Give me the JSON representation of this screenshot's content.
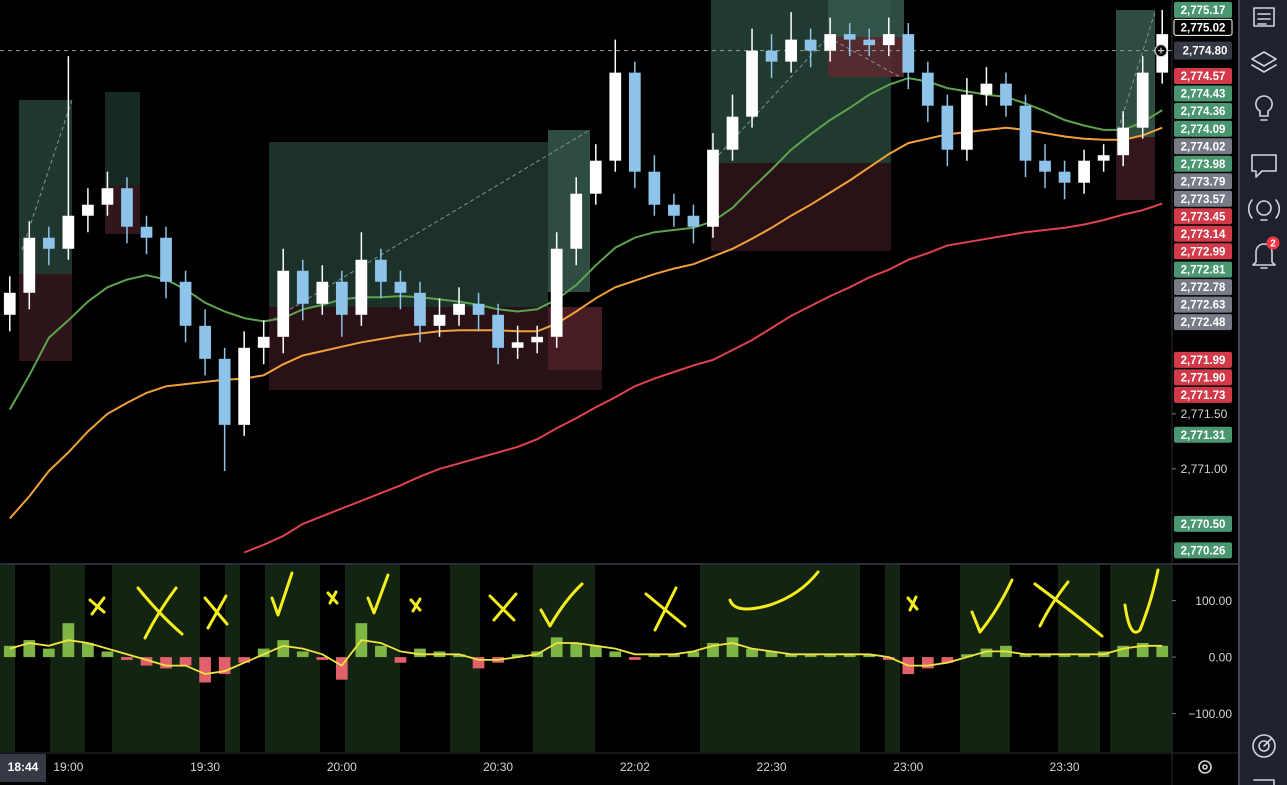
{
  "chart_data": [
    {
      "type": "candlestick",
      "categories": [
        null,
        null,
        null,
        "19:00",
        null,
        null,
        null,
        null,
        null,
        null,
        "19:30",
        null,
        null,
        null,
        null,
        null,
        null,
        "20:00",
        null,
        null,
        null,
        null,
        null,
        null,
        null,
        "20:30",
        null,
        null,
        null,
        null,
        null,
        null,
        "22:02",
        null,
        null,
        null,
        null,
        null,
        null,
        "22:30",
        null,
        null,
        null,
        null,
        null,
        null,
        "23:00",
        null,
        null,
        null,
        null,
        null,
        null,
        null,
        "23:30",
        null,
        null,
        null,
        null,
        null
      ],
      "open": [
        2772.4,
        2772.6,
        2773.1,
        2773.0,
        2773.3,
        2773.4,
        2773.55,
        2773.2,
        2773.1,
        2772.7,
        2772.3,
        2772.0,
        2771.4,
        2772.1,
        2772.2,
        2772.8,
        2772.5,
        2772.7,
        2772.4,
        2772.9,
        2772.7,
        2772.6,
        2772.3,
        2772.4,
        2772.5,
        2772.4,
        2772.1,
        2772.15,
        2772.2,
        2773.0,
        2773.5,
        2773.8,
        2774.6,
        2773.7,
        2773.4,
        2773.3,
        2773.2,
        2773.9,
        2774.2,
        2774.8,
        2774.7,
        2774.9,
        2774.8,
        2774.95,
        2774.9,
        2774.85,
        2774.95,
        2774.6,
        2774.3,
        2773.9,
        2774.4,
        2774.5,
        2774.3,
        2773.8,
        2773.7,
        2773.6,
        2773.8,
        2773.85,
        2774.1,
        2774.6
      ],
      "high": [
        2772.75,
        2773.25,
        2773.2,
        2774.75,
        2773.55,
        2773.7,
        2773.65,
        2773.3,
        2773.2,
        2772.8,
        2772.45,
        2772.1,
        2772.25,
        2772.35,
        2773.0,
        2772.9,
        2772.85,
        2772.8,
        2773.15,
        2773.0,
        2772.8,
        2772.7,
        2772.55,
        2772.65,
        2772.6,
        2772.5,
        2772.3,
        2772.3,
        2773.15,
        2773.65,
        2773.95,
        2774.9,
        2774.7,
        2773.85,
        2773.5,
        2773.4,
        2774.05,
        2774.4,
        2775.0,
        2774.95,
        2775.15,
        2775.0,
        2775.1,
        2775.05,
        2775.0,
        2775.1,
        2775.05,
        2774.7,
        2774.4,
        2774.55,
        2774.65,
        2774.6,
        2774.4,
        2773.95,
        2773.8,
        2773.9,
        2773.95,
        2774.25,
        2774.75,
        2775.17
      ],
      "low": [
        2772.25,
        2772.45,
        2772.85,
        2772.9,
        2773.15,
        2773.3,
        2773.05,
        2772.95,
        2772.55,
        2772.15,
        2771.85,
        2770.98,
        2771.3,
        2771.95,
        2772.05,
        2772.35,
        2772.4,
        2772.2,
        2772.3,
        2772.55,
        2772.45,
        2772.15,
        2772.2,
        2772.3,
        2772.25,
        2771.95,
        2772.0,
        2772.05,
        2772.1,
        2772.85,
        2773.4,
        2773.7,
        2773.55,
        2773.3,
        2773.2,
        2773.05,
        2773.1,
        2773.8,
        2774.1,
        2774.55,
        2774.6,
        2774.65,
        2774.7,
        2774.75,
        2774.75,
        2774.75,
        2774.45,
        2774.15,
        2773.75,
        2773.8,
        2774.3,
        2774.2,
        2773.65,
        2773.55,
        2773.45,
        2773.5,
        2773.7,
        2773.75,
        2774.0,
        2774.5
      ],
      "close": [
        2772.6,
        2773.1,
        2773.0,
        2773.3,
        2773.4,
        2773.55,
        2773.2,
        2773.1,
        2772.7,
        2772.3,
        2772.0,
        2771.4,
        2772.1,
        2772.2,
        2772.8,
        2772.5,
        2772.7,
        2772.4,
        2772.9,
        2772.7,
        2772.6,
        2772.3,
        2772.4,
        2772.5,
        2772.4,
        2772.1,
        2772.15,
        2772.2,
        2773.0,
        2773.5,
        2773.8,
        2774.6,
        2773.7,
        2773.4,
        2773.3,
        2773.2,
        2773.9,
        2774.2,
        2774.8,
        2774.7,
        2774.9,
        2774.8,
        2774.95,
        2774.9,
        2774.85,
        2774.95,
        2774.6,
        2774.3,
        2773.9,
        2774.4,
        2774.5,
        2774.3,
        2773.8,
        2773.7,
        2773.6,
        2773.8,
        2773.85,
        2774.1,
        2774.6,
        2774.95
      ],
      "up_color": "#ffffff",
      "down_color": "#8ec3ea",
      "lines": [
        {
          "color": "#5da34f",
          "values": [
            2771.54,
            2771.85,
            2772.19,
            2772.35,
            2772.52,
            2772.65,
            2772.72,
            2772.76,
            2772.72,
            2772.63,
            2772.51,
            2772.43,
            2772.37,
            2772.34,
            2772.37,
            2772.45,
            2772.49,
            2772.54,
            2772.56,
            2772.56,
            2772.57,
            2772.56,
            2772.54,
            2772.52,
            2772.49,
            2772.45,
            2772.43,
            2772.45,
            2772.54,
            2772.67,
            2772.85,
            2773.01,
            2773.1,
            2773.15,
            2773.17,
            2773.19,
            2773.25,
            2773.37,
            2773.55,
            2773.72,
            2773.9,
            2774.04,
            2774.17,
            2774.28,
            2774.4,
            2774.49,
            2774.55,
            2774.52,
            2774.46,
            2774.43,
            2774.4,
            2774.38,
            2774.32,
            2774.25,
            2774.17,
            2774.12,
            2774.08,
            2774.08,
            2774.15,
            2774.26
          ]
        },
        {
          "color": "#f2a03a",
          "values": [
            2770.55,
            2770.75,
            2770.98,
            2771.15,
            2771.34,
            2771.5,
            2771.6,
            2771.69,
            2771.75,
            2771.77,
            2771.79,
            2771.81,
            2771.82,
            2771.85,
            2771.95,
            2772.03,
            2772.07,
            2772.11,
            2772.15,
            2772.18,
            2772.21,
            2772.23,
            2772.25,
            2772.26,
            2772.26,
            2772.26,
            2772.25,
            2772.25,
            2772.32,
            2772.43,
            2772.55,
            2772.65,
            2772.71,
            2772.77,
            2772.82,
            2772.86,
            2772.93,
            2773.0,
            2773.09,
            2773.19,
            2773.3,
            2773.4,
            2773.51,
            2773.62,
            2773.74,
            2773.86,
            2773.96,
            2774.0,
            2774.04,
            2774.06,
            2774.08,
            2774.1,
            2774.08,
            2774.05,
            2774.02,
            2774.0,
            2773.99,
            2773.99,
            2774.03,
            2774.1
          ]
        },
        {
          "color": "#e0424e",
          "values": [
            null,
            null,
            null,
            null,
            null,
            null,
            null,
            null,
            null,
            null,
            null,
            null,
            2770.24,
            2770.31,
            2770.39,
            2770.5,
            2770.57,
            2770.64,
            2770.71,
            2770.78,
            2770.85,
            2770.93,
            2771.0,
            2771.05,
            2771.1,
            2771.15,
            2771.2,
            2771.27,
            2771.37,
            2771.46,
            2771.56,
            2771.65,
            2771.75,
            2771.82,
            2771.88,
            2771.94,
            2771.99,
            2772.08,
            2772.17,
            2772.28,
            2772.39,
            2772.48,
            2772.57,
            2772.65,
            2772.74,
            2772.81,
            2772.9,
            2772.96,
            2773.03,
            2773.06,
            2773.09,
            2773.12,
            2773.15,
            2773.17,
            2773.19,
            2773.22,
            2773.26,
            2773.31,
            2773.35,
            2773.41
          ]
        }
      ],
      "ylim": [
        2770.145,
        2775.26
      ],
      "yticks": [
        {
          "value": 2771.5,
          "label": "2,771.50"
        },
        {
          "value": 2771,
          "label": "2,771.00"
        }
      ],
      "price_tags": [
        {
          "value": 2775.17,
          "label": "2,775.17",
          "color": "#4a9670"
        },
        {
          "value": 2775.02,
          "label": "2,775.02",
          "color": "#000000"
        },
        {
          "value": 2774.57,
          "label": "2,774.57",
          "color": "#d23a4a"
        },
        {
          "value": 2774.43,
          "label": "2,774.43",
          "color": "#4a9670"
        },
        {
          "value": 2774.36,
          "label": "2,774.36",
          "color": "#4a9670"
        },
        {
          "value": 2774.09,
          "label": "2,774.09",
          "color": "#4a9670"
        },
        {
          "value": 2774.02,
          "label": "2,774.02",
          "color": "#787b86"
        },
        {
          "value": 2773.98,
          "label": "2,773.98",
          "color": "#4a9670"
        },
        {
          "value": 2773.79,
          "label": "2,773.79",
          "color": "#787b86"
        },
        {
          "value": 2773.57,
          "label": "2,773.57",
          "color": "#787b86"
        },
        {
          "value": 2773.45,
          "label": "2,773.45",
          "color": "#d23a4a"
        },
        {
          "value": 2773.14,
          "label": "2,773.14",
          "color": "#d23a4a"
        },
        {
          "value": 2772.99,
          "label": "2,772.99",
          "color": "#d23a4a"
        },
        {
          "value": 2772.81,
          "label": "2,772.81",
          "color": "#4a9670"
        },
        {
          "value": 2772.78,
          "label": "2,772.78",
          "color": "#787b86"
        },
        {
          "value": 2772.63,
          "label": "2,772.63",
          "color": "#787b86"
        },
        {
          "value": 2772.48,
          "label": "2,772.48",
          "color": "#787b86"
        },
        {
          "value": 2771.99,
          "label": "2,771.99",
          "color": "#d23a4a"
        },
        {
          "value": 2771.9,
          "label": "2,771.90",
          "color": "#d23a4a"
        },
        {
          "value": 2771.73,
          "label": "2,771.73",
          "color": "#d23a4a"
        },
        {
          "value": 2771.31,
          "label": "2,771.31",
          "color": "#4a9670"
        },
        {
          "value": 2770.5,
          "label": "2,770.50",
          "color": "#4a9670"
        },
        {
          "value": 2770.26,
          "label": "2,770.26",
          "color": "#4a9670"
        }
      ],
      "crosshair": {
        "value": 2774.8,
        "label": "2,774.80"
      },
      "crosshair_time": "18:44"
    },
    {
      "type": "bar",
      "values": [
        20,
        30,
        15,
        60,
        25,
        10,
        -5,
        -15,
        -20,
        -15,
        -45,
        -30,
        -10,
        15,
        30,
        10,
        -5,
        -40,
        60,
        20,
        -10,
        15,
        10,
        5,
        -20,
        -10,
        5,
        10,
        35,
        25,
        20,
        10,
        -5,
        5,
        5,
        10,
        25,
        35,
        15,
        10,
        5,
        5,
        5,
        5,
        5,
        -5,
        -30,
        -20,
        -10,
        5,
        15,
        20,
        5,
        5,
        5,
        5,
        10,
        20,
        25,
        20
      ],
      "up_color": "#7fb545",
      "down_color": "#e0606b",
      "line": {
        "color": "#f0e442",
        "values": [
          15,
          25,
          20,
          30,
          25,
          15,
          5,
          -5,
          -15,
          -15,
          -30,
          -25,
          -10,
          5,
          20,
          15,
          5,
          -15,
          30,
          25,
          10,
          5,
          5,
          5,
          -5,
          -5,
          0,
          5,
          25,
          25,
          20,
          15,
          5,
          5,
          5,
          10,
          20,
          25,
          15,
          10,
          5,
          5,
          5,
          5,
          5,
          0,
          -15,
          -15,
          -10,
          0,
          10,
          10,
          5,
          5,
          5,
          5,
          5,
          15,
          20,
          20
        ]
      },
      "ylim": [
        -168,
        163
      ],
      "yticks": [
        {
          "value": 100,
          "label": "100.00"
        },
        {
          "value": 0,
          "label": "0.00"
        },
        {
          "value": -100,
          "label": "−100.00"
        }
      ]
    }
  ],
  "sidebar": {
    "alerts_badge": "2"
  }
}
